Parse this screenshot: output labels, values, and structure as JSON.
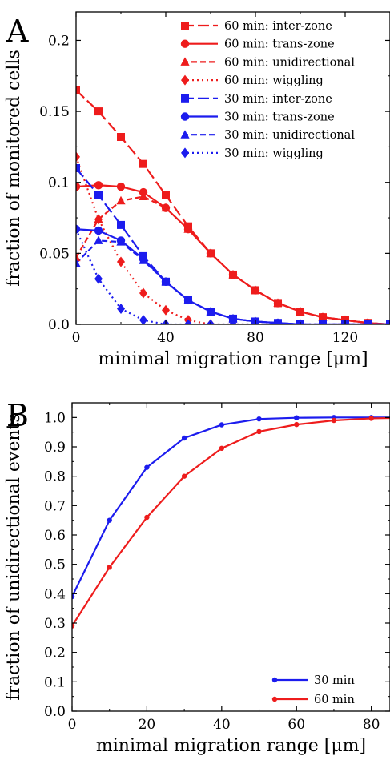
{
  "chart_data": [
    {
      "panel": "A",
      "type": "line",
      "xlabel": "minimal migration range [μm]",
      "ylabel": "fraction of monitored cells",
      "xlim": [
        0,
        140
      ],
      "ylim": [
        0,
        0.22
      ],
      "xticks": [
        0,
        40,
        80,
        120
      ],
      "yticks": [
        0.0,
        0.05,
        0.1,
        0.15,
        0.2
      ],
      "ytick_labels": [
        "0.0",
        "0.05",
        "0.1",
        "0.15",
        "0.2"
      ],
      "legend_position": "top-right",
      "series": [
        {
          "name": "60 min: inter-zone",
          "color": "#ee1c1c",
          "dash": "long-dash",
          "marker": "square",
          "x": [
            0,
            10,
            20,
            30,
            40,
            50,
            60,
            70,
            80,
            90,
            100,
            110,
            120,
            130,
            140
          ],
          "values": [
            0.165,
            0.15,
            0.132,
            0.113,
            0.091,
            0.069,
            0.05,
            0.035,
            0.024,
            0.015,
            0.009,
            0.005,
            0.003,
            0.001,
            0.0
          ]
        },
        {
          "name": "60 min: trans-zone",
          "color": "#ee1c1c",
          "dash": "solid",
          "marker": "circle",
          "x": [
            0,
            10,
            20,
            30,
            40,
            50,
            60,
            70,
            80,
            90,
            100,
            110,
            120,
            130,
            140
          ],
          "values": [
            0.097,
            0.098,
            0.097,
            0.093,
            0.082,
            0.067,
            0.05,
            0.035,
            0.024,
            0.015,
            0.009,
            0.005,
            0.003,
            0.001,
            0.0
          ]
        },
        {
          "name": "60 min: unidirectional",
          "color": "#ee1c1c",
          "dash": "short-dash",
          "marker": "triangle",
          "x": [
            0,
            10,
            20,
            30,
            40,
            50,
            60,
            70,
            80,
            90,
            100,
            110,
            120,
            130,
            140
          ],
          "values": [
            0.047,
            0.074,
            0.087,
            0.09,
            0.082,
            0.067,
            0.05,
            0.035,
            0.024,
            0.015,
            0.009,
            0.005,
            0.003,
            0.001,
            0.0
          ]
        },
        {
          "name": "60 min: wiggling",
          "color": "#ee1c1c",
          "dash": "dotted",
          "marker": "diamond",
          "x": [
            0,
            10,
            20,
            30,
            40,
            50,
            60,
            70,
            80,
            90,
            100,
            110,
            120,
            130,
            140
          ],
          "values": [
            0.118,
            0.074,
            0.044,
            0.022,
            0.01,
            0.003,
            0.0,
            0.0,
            0.0,
            0.0,
            0.0,
            0.0,
            0.0,
            0.0,
            0.0
          ]
        },
        {
          "name": "30 min: inter-zone",
          "color": "#1c1cee",
          "dash": "long-dash",
          "marker": "square",
          "x": [
            0,
            10,
            20,
            30,
            40,
            50,
            60,
            70,
            80,
            90,
            100,
            110,
            120,
            130,
            140
          ],
          "values": [
            0.11,
            0.091,
            0.07,
            0.048,
            0.03,
            0.017,
            0.009,
            0.004,
            0.002,
            0.001,
            0.0,
            0.0,
            0.0,
            0.0,
            0.0
          ]
        },
        {
          "name": "30 min: trans-zone",
          "color": "#1c1cee",
          "dash": "solid",
          "marker": "circle",
          "x": [
            0,
            10,
            20,
            30,
            40,
            50,
            60,
            70,
            80,
            90,
            100,
            110,
            120,
            130,
            140
          ],
          "values": [
            0.067,
            0.066,
            0.059,
            0.046,
            0.03,
            0.017,
            0.009,
            0.004,
            0.002,
            0.001,
            0.0,
            0.0,
            0.0,
            0.0,
            0.0
          ]
        },
        {
          "name": "30 min: unidirectional",
          "color": "#1c1cee",
          "dash": "short-dash",
          "marker": "triangle",
          "x": [
            0,
            10,
            20,
            30,
            40,
            50,
            60,
            70,
            80,
            90,
            100,
            110,
            120,
            130,
            140
          ],
          "values": [
            0.043,
            0.059,
            0.058,
            0.045,
            0.03,
            0.017,
            0.009,
            0.004,
            0.002,
            0.001,
            0.0,
            0.0,
            0.0,
            0.0,
            0.0
          ]
        },
        {
          "name": "30 min: wiggling",
          "color": "#1c1cee",
          "dash": "dotted",
          "marker": "diamond",
          "x": [
            0,
            10,
            20,
            30,
            40,
            50,
            60,
            70,
            80,
            90,
            100,
            110,
            120,
            130,
            140
          ],
          "values": [
            0.067,
            0.032,
            0.011,
            0.003,
            0.0,
            0.0,
            0.0,
            0.0,
            0.0,
            0.0,
            0.0,
            0.0,
            0.0,
            0.0,
            0.0
          ]
        }
      ]
    },
    {
      "panel": "B",
      "type": "line",
      "xlabel": "minimal migration range [μm]",
      "ylabel": "fraction of unidirectional events",
      "xlim": [
        0,
        85
      ],
      "ylim": [
        0,
        1.05
      ],
      "xticks": [
        0,
        20,
        40,
        60,
        80
      ],
      "yticks": [
        0.0,
        0.1,
        0.2,
        0.3,
        0.4,
        0.5,
        0.6,
        0.7,
        0.8,
        0.9,
        1.0
      ],
      "ytick_labels": [
        "0.0",
        "0.1",
        "0.2",
        "0.3",
        "0.4",
        "0.5",
        "0.6",
        "0.7",
        "0.8",
        "0.9",
        "1.0"
      ],
      "legend_position": "bottom-right",
      "series": [
        {
          "name": "30 min",
          "color": "#1c1cee",
          "dash": "solid",
          "marker": "dot",
          "x": [
            0,
            10,
            20,
            30,
            40,
            50,
            60,
            70,
            80,
            85
          ],
          "values": [
            0.39,
            0.65,
            0.83,
            0.93,
            0.975,
            0.995,
            0.999,
            1.0,
            1.0,
            1.0
          ]
        },
        {
          "name": "60 min",
          "color": "#ee1c1c",
          "dash": "solid",
          "marker": "dot",
          "x": [
            0,
            10,
            20,
            30,
            40,
            50,
            60,
            70,
            80,
            85
          ],
          "values": [
            0.29,
            0.49,
            0.66,
            0.8,
            0.895,
            0.952,
            0.976,
            0.99,
            0.997,
            0.998
          ]
        }
      ]
    }
  ]
}
